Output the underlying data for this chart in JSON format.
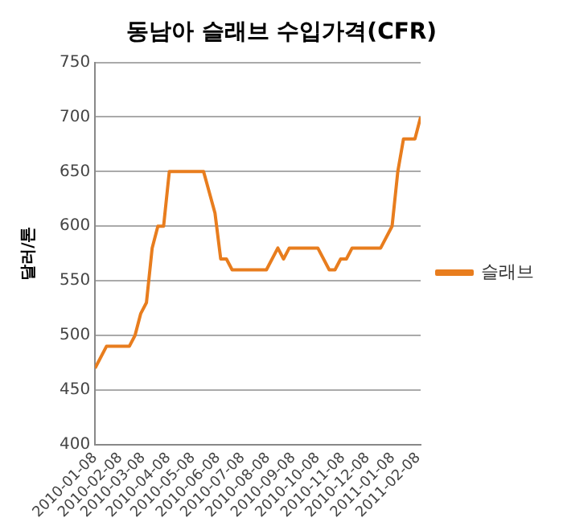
{
  "chart_data": {
    "type": "line",
    "title": "동남아 슬래브 수입가격(CFR)",
    "ylabel": "달러/톤",
    "x": [
      "2010-01-08",
      "2010-01-22",
      "2010-02-19",
      "2010-02-26",
      "2010-03-05",
      "2010-03-12",
      "2010-03-19",
      "2010-03-26",
      "2010-04-02",
      "2010-04-09",
      "2010-05-21",
      "2010-06-04",
      "2010-06-11",
      "2010-06-18",
      "2010-06-25",
      "2010-08-06",
      "2010-08-20",
      "2010-08-27",
      "2010-09-03",
      "2010-10-08",
      "2010-10-22",
      "2010-10-29",
      "2010-11-05",
      "2010-11-12",
      "2010-11-19",
      "2010-12-24",
      "2011-01-07",
      "2011-01-14",
      "2011-01-21",
      "2011-02-04",
      "2011-02-11"
    ],
    "series": [
      {
        "name": "슬래브",
        "color": "#e87d1e",
        "values": [
          470,
          490,
          490,
          500,
          520,
          530,
          580,
          600,
          600,
          650,
          650,
          612,
          570,
          570,
          560,
          560,
          580,
          570,
          580,
          580,
          560,
          560,
          570,
          570,
          580,
          580,
          600,
          650,
          680,
          680,
          700
        ]
      }
    ],
    "xlim": [
      "2010-01-08",
      "2011-02-11"
    ],
    "xticks": [
      "2010-01-08",
      "2010-02-08",
      "2010-03-08",
      "2010-04-08",
      "2010-05-08",
      "2010-06-08",
      "2010-07-08",
      "2010-08-08",
      "2010-09-08",
      "2010-10-08",
      "2010-11-08",
      "2010-12-08",
      "2011-01-08",
      "2011-02-08"
    ],
    "ylim": [
      400,
      750
    ],
    "yticks": [
      400,
      450,
      500,
      550,
      600,
      650,
      700,
      750
    ],
    "grid": "y",
    "legend": "right",
    "marker": "none",
    "line_style": "solid"
  }
}
